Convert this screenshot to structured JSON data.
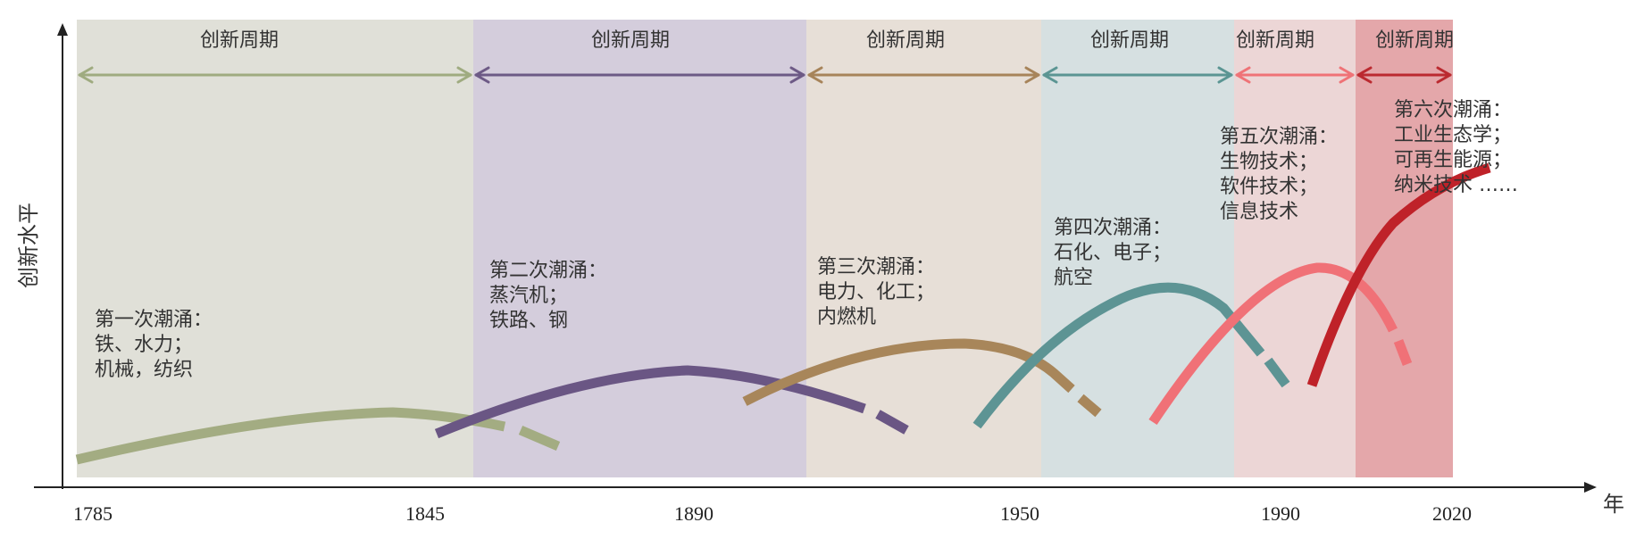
{
  "axis": {
    "y_label": "创新水平",
    "x_label": "年",
    "ticks": [
      "1785",
      "1845",
      "1890",
      "1950",
      "1990",
      "2020"
    ]
  },
  "periods": [
    {
      "label": "创新周期",
      "bg": "#e0e0d8",
      "arrow": "#9fab80"
    },
    {
      "label": "创新周期",
      "bg": "#d4cddc",
      "arrow": "#6d5a86"
    },
    {
      "label": "创新周期",
      "bg": "#e7dfd7",
      "arrow": "#a7845a"
    },
    {
      "label": "创新周期",
      "bg": "#d6e0e1",
      "arrow": "#5b9593"
    },
    {
      "label": "创新周期",
      "bg": "#ecd6d6",
      "arrow": "#ef7377"
    },
    {
      "label": "创新周期",
      "bg": "#e4a7aa",
      "arrow": "#bb2a30"
    }
  ],
  "waves": [
    {
      "lines": [
        "第一次潮涌：",
        "铁、水力；",
        "机械，纺织"
      ],
      "color": "#a3ac82"
    },
    {
      "lines": [
        "第二次潮涌：",
        "蒸汽机；",
        "铁路、钢"
      ],
      "color": "#6a5684"
    },
    {
      "lines": [
        "第三次潮涌：",
        "电力、化工；",
        "内燃机"
      ],
      "color": "#a8865a"
    },
    {
      "lines": [
        "第四次潮涌：",
        "石化、电子；",
        "航空"
      ],
      "color": "#5d9494"
    },
    {
      "lines": [
        "第五次潮涌：",
        "生物技术；",
        "软件技术；",
        "信息技术"
      ],
      "color": "#f07177"
    },
    {
      "lines": [
        "第六次潮涌：",
        "工业生态学；",
        "可再生能源；",
        "纳米技术 ……"
      ],
      "color": "#bf2229"
    }
  ]
}
